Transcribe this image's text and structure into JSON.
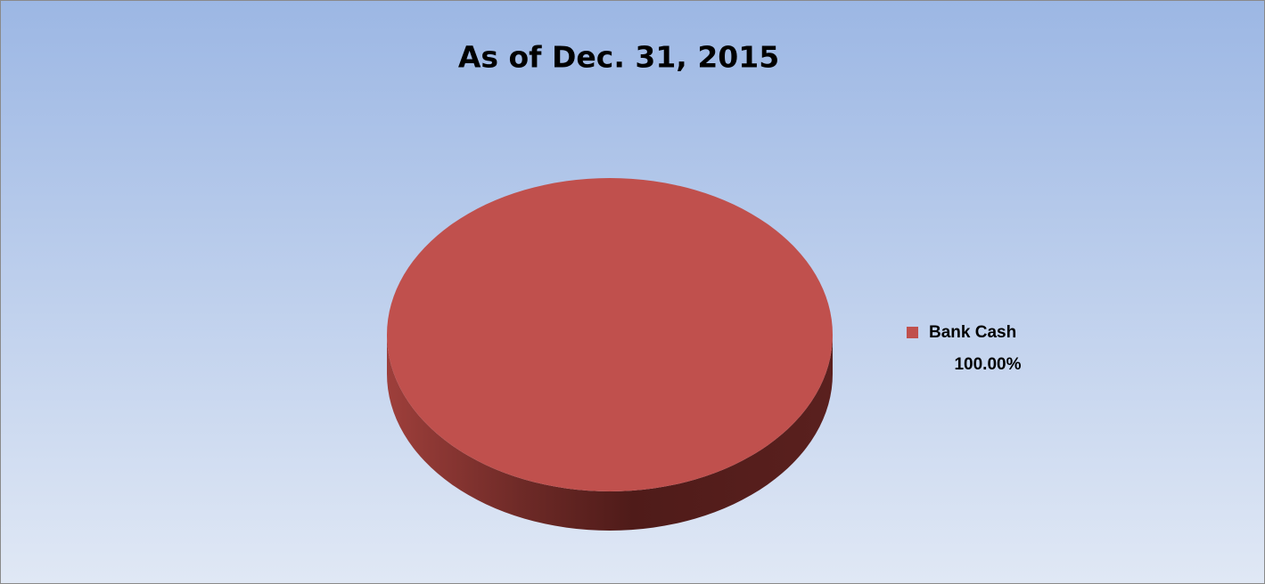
{
  "chart_data": {
    "type": "pie",
    "title": "As of Dec. 31, 2015",
    "categories": [
      "Bank Cash"
    ],
    "values": [
      100
    ],
    "value_labels": [
      "100.00%"
    ],
    "colors": [
      "#c0504d"
    ],
    "legend": "right"
  }
}
